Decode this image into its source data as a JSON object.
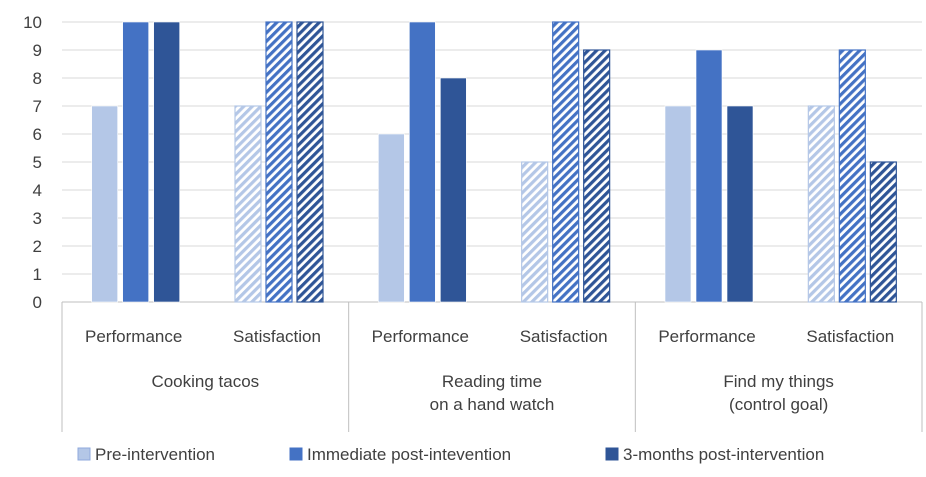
{
  "chart_data": {
    "type": "bar",
    "ylim": [
      0,
      10
    ],
    "yticks": [
      0,
      1,
      2,
      3,
      4,
      5,
      6,
      7,
      8,
      9,
      10
    ],
    "grid": true,
    "legend_position": "bottom",
    "groups": [
      {
        "label_lines": [
          "Cooking tacos"
        ],
        "categories": [
          "Performance",
          "Satisfaction"
        ]
      },
      {
        "label_lines": [
          "Reading time",
          "on a hand watch"
        ],
        "categories": [
          "Performance",
          "Satisfaction"
        ]
      },
      {
        "label_lines": [
          "Find my things",
          "(control goal)"
        ],
        "categories": [
          "Performance",
          "Satisfaction"
        ]
      }
    ],
    "categories": [
      "Cooking tacos - Performance",
      "Cooking tacos - Satisfaction",
      "Reading time on a hand watch - Performance",
      "Reading time on a hand watch - Satisfaction",
      "Find my things (control goal) - Performance",
      "Find my things (control goal) - Satisfaction"
    ],
    "series": [
      {
        "name": "Pre-intervention",
        "color": "#b4c7e7",
        "values": [
          7,
          7,
          6,
          5,
          7,
          7
        ]
      },
      {
        "name": "Immediate post-intevention",
        "color": "#4472c4",
        "values": [
          10,
          10,
          10,
          10,
          9,
          9
        ]
      },
      {
        "name": "3-months post-intervention",
        "color": "#2f5597",
        "values": [
          10,
          10,
          8,
          9,
          7,
          5
        ]
      }
    ],
    "hatched_categories": [
      1,
      3,
      5
    ]
  }
}
